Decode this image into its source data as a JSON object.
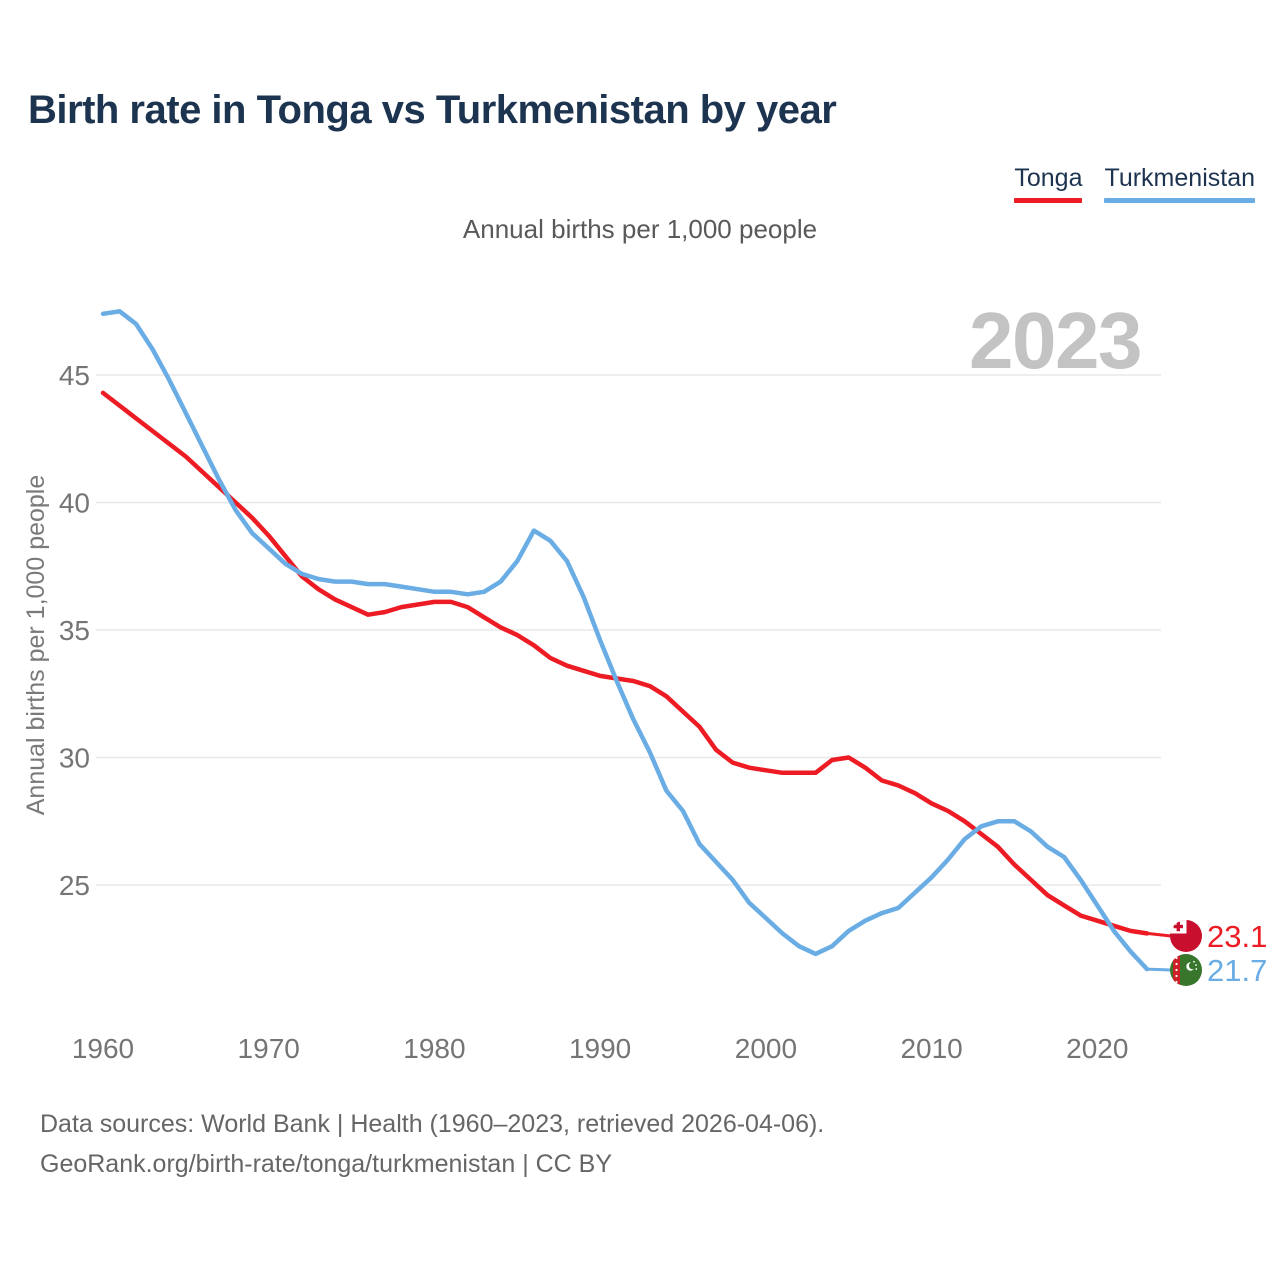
{
  "title": "Birth rate in Tonga vs Turkmenistan by year",
  "subtitle": "Annual births per 1,000 people",
  "watermark": "2023",
  "legend": [
    {
      "label": "Tonga",
      "color": "#ed1c24"
    },
    {
      "label": "Turkmenistan",
      "color": "#6aace4"
    }
  ],
  "y_axis": {
    "label": "Annual births per 1,000 people",
    "ticks": [
      "45",
      "40",
      "35",
      "30",
      "25"
    ]
  },
  "x_axis": {
    "ticks": [
      "1960",
      "1970",
      "1980",
      "1990",
      "2000",
      "2010",
      "2020"
    ]
  },
  "end_labels": [
    {
      "series": "Tonga",
      "value": "23.1",
      "flag": "tonga-flag-icon"
    },
    {
      "series": "Turkmenistan",
      "value": "21.7",
      "flag": "turkmenistan-flag-icon"
    }
  ],
  "source": {
    "line1": "Data sources: World Bank | Health (1960–2023, retrieved 2026-04-06).",
    "line2": "GeoRank.org/birth-rate/tonga/turkmenistan | CC BY"
  },
  "chart_data": {
    "type": "line",
    "title": "Birth rate in Tonga vs Turkmenistan by year",
    "xlabel": "",
    "ylabel": "Annual births per 1,000 people",
    "ylim": [
      21,
      48
    ],
    "yticks": [
      25,
      30,
      35,
      40,
      45
    ],
    "grid": "horizontal",
    "legend_position": "top-right",
    "x": [
      1960,
      1961,
      1962,
      1963,
      1964,
      1965,
      1966,
      1967,
      1968,
      1969,
      1970,
      1971,
      1972,
      1973,
      1974,
      1975,
      1976,
      1977,
      1978,
      1979,
      1980,
      1981,
      1982,
      1983,
      1984,
      1985,
      1986,
      1987,
      1988,
      1989,
      1990,
      1991,
      1992,
      1993,
      1994,
      1995,
      1996,
      1997,
      1998,
      1999,
      2000,
      2001,
      2002,
      2003,
      2004,
      2005,
      2006,
      2007,
      2008,
      2009,
      2010,
      2011,
      2012,
      2013,
      2014,
      2015,
      2016,
      2017,
      2018,
      2019,
      2020,
      2021,
      2022,
      2023
    ],
    "series": [
      {
        "name": "Tonga",
        "color": "#ed1c24",
        "end_value": 23.1,
        "values": [
          44.3,
          43.8,
          43.3,
          42.8,
          42.3,
          41.8,
          41.2,
          40.6,
          40.0,
          39.4,
          38.7,
          37.9,
          37.1,
          36.6,
          36.2,
          35.9,
          35.6,
          35.7,
          35.9,
          36.0,
          36.1,
          36.1,
          35.9,
          35.5,
          35.1,
          34.8,
          34.4,
          33.9,
          33.6,
          33.4,
          33.2,
          33.1,
          33.0,
          32.8,
          32.4,
          31.8,
          31.2,
          30.3,
          29.8,
          29.6,
          29.5,
          29.4,
          29.4,
          29.4,
          29.9,
          30.0,
          29.6,
          29.1,
          28.9,
          28.6,
          28.2,
          27.9,
          27.5,
          27.0,
          26.5,
          25.8,
          25.2,
          24.6,
          24.2,
          23.8,
          23.6,
          23.4,
          23.2,
          23.1
        ]
      },
      {
        "name": "Turkmenistan",
        "color": "#6aace4",
        "end_value": 21.7,
        "values": [
          47.4,
          47.5,
          47.0,
          46.0,
          44.8,
          43.5,
          42.2,
          40.9,
          39.7,
          38.8,
          38.2,
          37.6,
          37.2,
          37.0,
          36.9,
          36.9,
          36.8,
          36.8,
          36.7,
          36.6,
          36.5,
          36.5,
          36.4,
          36.5,
          36.9,
          37.7,
          38.9,
          38.5,
          37.7,
          36.3,
          34.6,
          33.0,
          31.5,
          30.2,
          28.7,
          27.9,
          26.6,
          25.9,
          25.2,
          24.3,
          23.7,
          23.1,
          22.6,
          22.3,
          22.6,
          23.2,
          23.6,
          23.9,
          24.1,
          24.7,
          25.3,
          26.0,
          26.8,
          27.3,
          27.5,
          27.5,
          27.1,
          26.5,
          26.1,
          25.2,
          24.2,
          23.2,
          22.4,
          21.7
        ]
      }
    ]
  }
}
